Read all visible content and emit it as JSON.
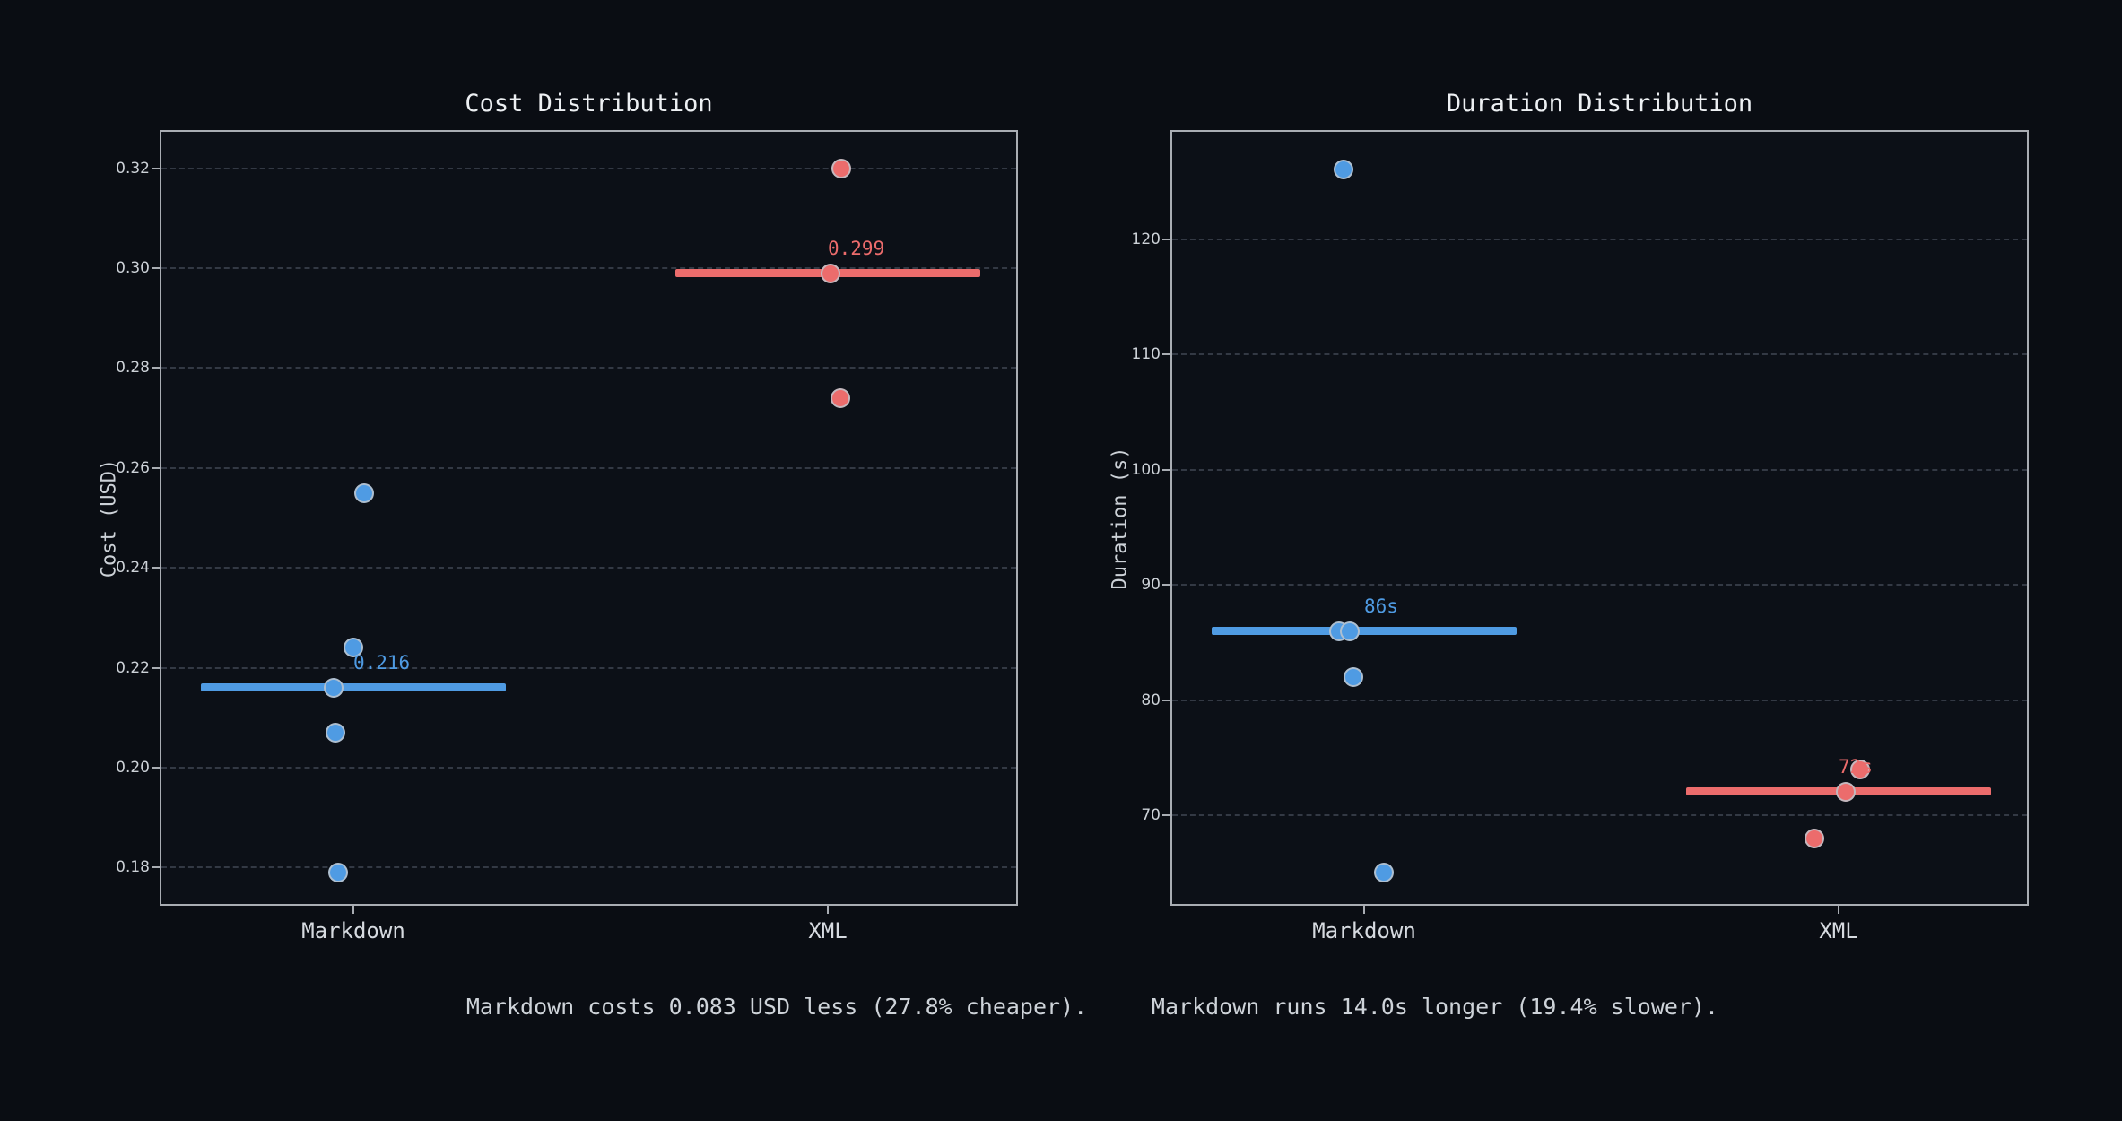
{
  "figure": {
    "background": "#0a0d13",
    "annotations": [
      {
        "id": "cost",
        "text": "Markdown costs 0.083 USD less (27.8% cheaper)."
      },
      {
        "id": "duration",
        "text": "Markdown runs 14.0s longer (19.4% slower)."
      }
    ]
  },
  "colors": {
    "markdown_blue": "#4f9be3",
    "xml_red": "#ec6c6c",
    "title_text": "#edf0f3",
    "tick_text": "#ccd1d7",
    "axis_border": "#a9adb3",
    "gridline": "#333944",
    "point_edge": "#bec5cd"
  },
  "chart_data": [
    {
      "type": "scatter",
      "title": "Cost Distribution",
      "ylabel": "Cost (USD)",
      "xlabel": "",
      "categories": [
        "Markdown",
        "XML"
      ],
      "ylim": [
        0.172,
        0.3273
      ],
      "yticks": [
        0.18,
        0.2,
        0.22,
        0.24,
        0.26,
        0.28,
        0.3,
        0.32
      ],
      "ytick_labels": [
        "0.18",
        "0.20",
        "0.22",
        "0.24",
        "0.26",
        "0.28",
        "0.30",
        "0.32"
      ],
      "grid": "horizontal-dashed",
      "legend": "none",
      "series": [
        {
          "name": "Markdown",
          "color_key": "markdown_blue",
          "median": 0.216,
          "median_label": "0.216",
          "points": [
            {
              "dx": 12,
              "y": 0.255
            },
            {
              "dx": 0,
              "y": 0.224
            },
            {
              "dx": -22,
              "y": 0.216
            },
            {
              "dx": -20,
              "y": 0.207
            },
            {
              "dx": -17,
              "y": 0.179
            }
          ]
        },
        {
          "name": "XML",
          "color_key": "xml_red",
          "median": 0.299,
          "median_label": "0.299",
          "points": [
            {
              "dx": 15,
              "y": 0.32
            },
            {
              "dx": 3,
              "y": 0.299
            },
            {
              "dx": 14,
              "y": 0.274
            }
          ]
        }
      ]
    },
    {
      "type": "scatter",
      "title": "Duration Distribution",
      "ylabel": "Duration (s)",
      "xlabel": "",
      "categories": [
        "Markdown",
        "XML"
      ],
      "ylim": [
        62,
        129.3
      ],
      "yticks": [
        70,
        80,
        90,
        100,
        110,
        120
      ],
      "ytick_labels": [
        "70",
        "80",
        "90",
        "100",
        "110",
        "120"
      ],
      "grid": "horizontal-dashed",
      "legend": "none",
      "series": [
        {
          "name": "Markdown",
          "color_key": "markdown_blue",
          "median": 86,
          "median_label": "86s",
          "points": [
            {
              "dx": -23,
              "y": 126
            },
            {
              "dx": -28,
              "y": 86
            },
            {
              "dx": -16,
              "y": 86
            },
            {
              "dx": -12,
              "y": 82
            },
            {
              "dx": 22,
              "y": 65
            }
          ]
        },
        {
          "name": "XML",
          "color_key": "xml_red",
          "median": 72,
          "median_label": "72s",
          "points": [
            {
              "dx": 24,
              "y": 74
            },
            {
              "dx": 8,
              "y": 72
            },
            {
              "dx": -27,
              "y": 68
            }
          ]
        }
      ]
    }
  ]
}
